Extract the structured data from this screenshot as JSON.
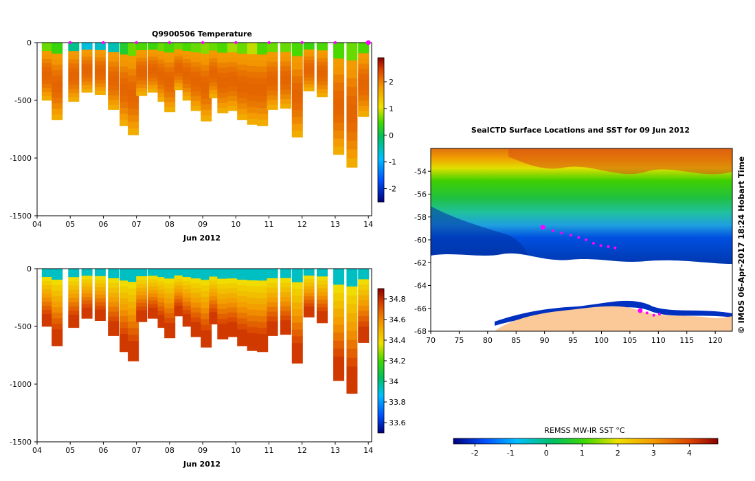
{
  "chart_data": [
    {
      "type": "heatmap",
      "id": "temperature",
      "title": "Q9900506  Temperature",
      "xlabel": "Jun 2012",
      "ylabel": "",
      "xlim": [
        4,
        14.1
      ],
      "ylim": [
        -1500,
        0
      ],
      "xticks": [
        "04",
        "05",
        "06",
        "07",
        "08",
        "09",
        "10",
        "11",
        "12",
        "13",
        "14"
      ],
      "yticks": [
        "0",
        "-500",
        "-1000",
        "-1500"
      ],
      "colorbar": {
        "min": -2.5,
        "max": 2.9,
        "ticks": [
          "2",
          "1",
          "0",
          "-1",
          "-2"
        ]
      },
      "profile_markers": [
        5,
        6,
        7,
        8,
        9,
        10,
        11,
        12,
        13,
        14
      ],
      "profiles": [
        {
          "x": 4.3,
          "depth": 500,
          "surface": 0.6
        },
        {
          "x": 4.6,
          "depth": 670,
          "surface": 0.4
        },
        {
          "x": 5.1,
          "depth": 510,
          "surface": -0.3
        },
        {
          "x": 5.5,
          "depth": 430,
          "surface": -0.7
        },
        {
          "x": 5.9,
          "depth": 450,
          "surface": -0.6
        },
        {
          "x": 6.3,
          "depth": 580,
          "surface": -0.5
        },
        {
          "x": 6.65,
          "depth": 720,
          "surface": 0.2
        },
        {
          "x": 6.9,
          "depth": 800,
          "surface": 0.6
        },
        {
          "x": 7.15,
          "depth": 460,
          "surface": 0.5
        },
        {
          "x": 7.5,
          "depth": 430,
          "surface": 0.4
        },
        {
          "x": 7.8,
          "depth": 510,
          "surface": 0.6
        },
        {
          "x": 8.0,
          "depth": 600,
          "surface": 0.5
        },
        {
          "x": 8.3,
          "depth": 410,
          "surface": 0.6
        },
        {
          "x": 8.55,
          "depth": 500,
          "surface": 0.5
        },
        {
          "x": 8.8,
          "depth": 590,
          "surface": 0.6
        },
        {
          "x": 9.1,
          "depth": 680,
          "surface": 0.7
        },
        {
          "x": 9.35,
          "depth": 480,
          "surface": 0.6
        },
        {
          "x": 9.6,
          "depth": 610,
          "surface": 0.5
        },
        {
          "x": 9.9,
          "depth": 590,
          "surface": 0.8
        },
        {
          "x": 10.2,
          "depth": 670,
          "surface": 0.6
        },
        {
          "x": 10.5,
          "depth": 710,
          "surface": 0.9
        },
        {
          "x": 10.8,
          "depth": 720,
          "surface": 0.5
        },
        {
          "x": 11.1,
          "depth": 580,
          "surface": 0.6
        },
        {
          "x": 11.5,
          "depth": 570,
          "surface": 0.6
        },
        {
          "x": 11.85,
          "depth": 820,
          "surface": 0.5
        },
        {
          "x": 12.2,
          "depth": 420,
          "surface": 0.4
        },
        {
          "x": 12.6,
          "depth": 470,
          "surface": 0.5
        },
        {
          "x": 13.1,
          "depth": 970,
          "surface": 0.5
        },
        {
          "x": 13.5,
          "depth": 1080,
          "surface": 0.6
        },
        {
          "x": 13.85,
          "depth": 640,
          "surface": 0.5
        }
      ]
    },
    {
      "type": "heatmap",
      "id": "salinity",
      "title": "",
      "xlabel": "Jun 2012",
      "ylabel": "",
      "xlim": [
        4,
        14.1
      ],
      "ylim": [
        -1500,
        0
      ],
      "xticks": [
        "04",
        "05",
        "06",
        "07",
        "08",
        "09",
        "10",
        "11",
        "12",
        "13",
        "14"
      ],
      "yticks": [
        "0",
        "-500",
        "-1000",
        "-1500"
      ],
      "colorbar": {
        "min": 33.5,
        "max": 34.9,
        "ticks": [
          "34.8",
          "34.6",
          "34.4",
          "34.2",
          "34",
          "33.8",
          "33.6"
        ]
      }
    },
    {
      "type": "scatter",
      "id": "sst-map",
      "title": "SealCTD Surface Locations and SST for 09 Jun 2012",
      "xlim": [
        70,
        123
      ],
      "ylim": [
        -68,
        -52
      ],
      "xticks": [
        "70",
        "75",
        "80",
        "85",
        "90",
        "95",
        "100",
        "105",
        "110",
        "115",
        "120"
      ],
      "yticks": [
        "-54",
        "-56",
        "-58",
        "-60",
        "-62",
        "-64",
        "-66",
        "-68"
      ],
      "colorbar": {
        "label": "REMSS MW-IR SST °C",
        "min": -2.6,
        "max": 4.8,
        "ticks": [
          "-2",
          "-1",
          "0",
          "1",
          "2",
          "3",
          "4"
        ]
      },
      "track": [
        {
          "lon": 89.7,
          "lat": -58.9
        },
        {
          "lon": 91.5,
          "lat": -59.2
        },
        {
          "lon": 93.0,
          "lat": -59.4
        },
        {
          "lon": 94.6,
          "lat": -59.6
        },
        {
          "lon": 96.0,
          "lat": -59.8
        },
        {
          "lon": 97.3,
          "lat": -60.0
        },
        {
          "lon": 98.6,
          "lat": -60.3
        },
        {
          "lon": 99.9,
          "lat": -60.5
        },
        {
          "lon": 101.2,
          "lat": -60.6
        },
        {
          "lon": 102.4,
          "lat": -60.7
        }
      ],
      "track_south": [
        {
          "lon": 106.8,
          "lat": -66.2
        },
        {
          "lon": 108.0,
          "lat": -66.4
        },
        {
          "lon": 109.2,
          "lat": -66.6
        },
        {
          "lon": 110.2,
          "lat": -66.5
        }
      ]
    }
  ],
  "watermark": "© IMOS 06-Apr-2017 18:24 Hobart Time"
}
